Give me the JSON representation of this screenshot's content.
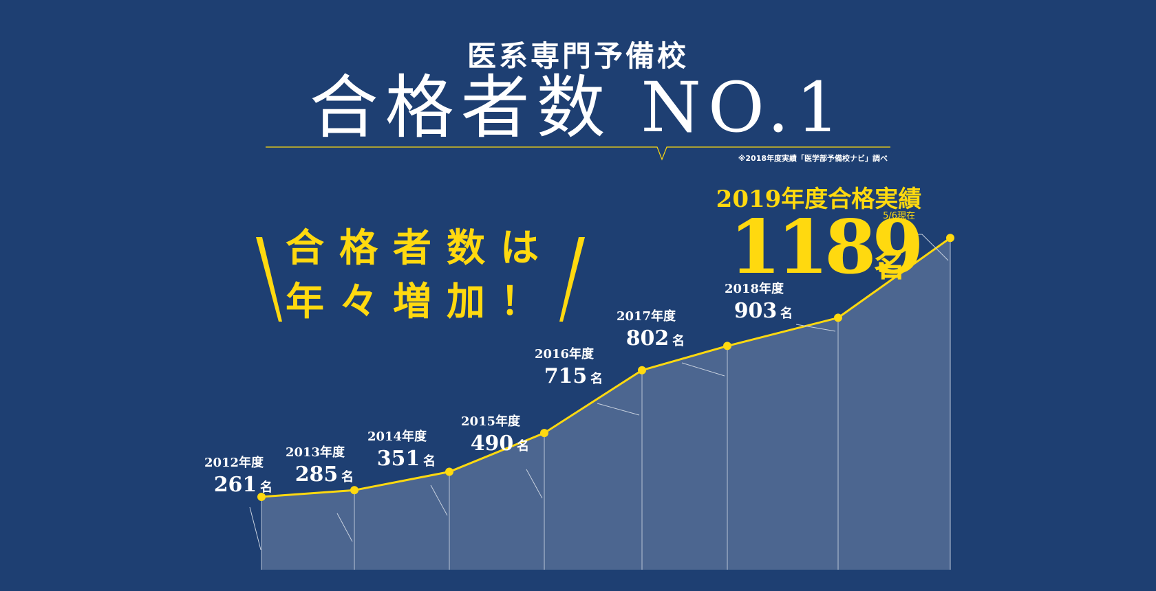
{
  "header": {
    "subtitle": "医系専門予備校",
    "title": "合格者数 NO.1",
    "source_note": "※2018年度実績「医学部予備校ナビ」調べ"
  },
  "catchphrase": {
    "line1": "合格者数は",
    "line2": "年々増加！"
  },
  "highlight": {
    "title": "2019年度合格実績",
    "date": "5/6現在",
    "value": "1189",
    "unit": "名"
  },
  "colors": {
    "background": "#1e3f72",
    "accent": "#ffd90f",
    "area": "#4c6690"
  },
  "chart_data": {
    "type": "area",
    "unit": "名",
    "categories": [
      "2012年度",
      "2013年度",
      "2014年度",
      "2015年度",
      "2016年度",
      "2017年度",
      "2018年度",
      "2019年度"
    ],
    "values": [
      261,
      285,
      351,
      490,
      715,
      802,
      903,
      1189
    ],
    "point_labels": [
      "261",
      "285",
      "351",
      "490",
      "715",
      "802",
      "903",
      ""
    ]
  }
}
